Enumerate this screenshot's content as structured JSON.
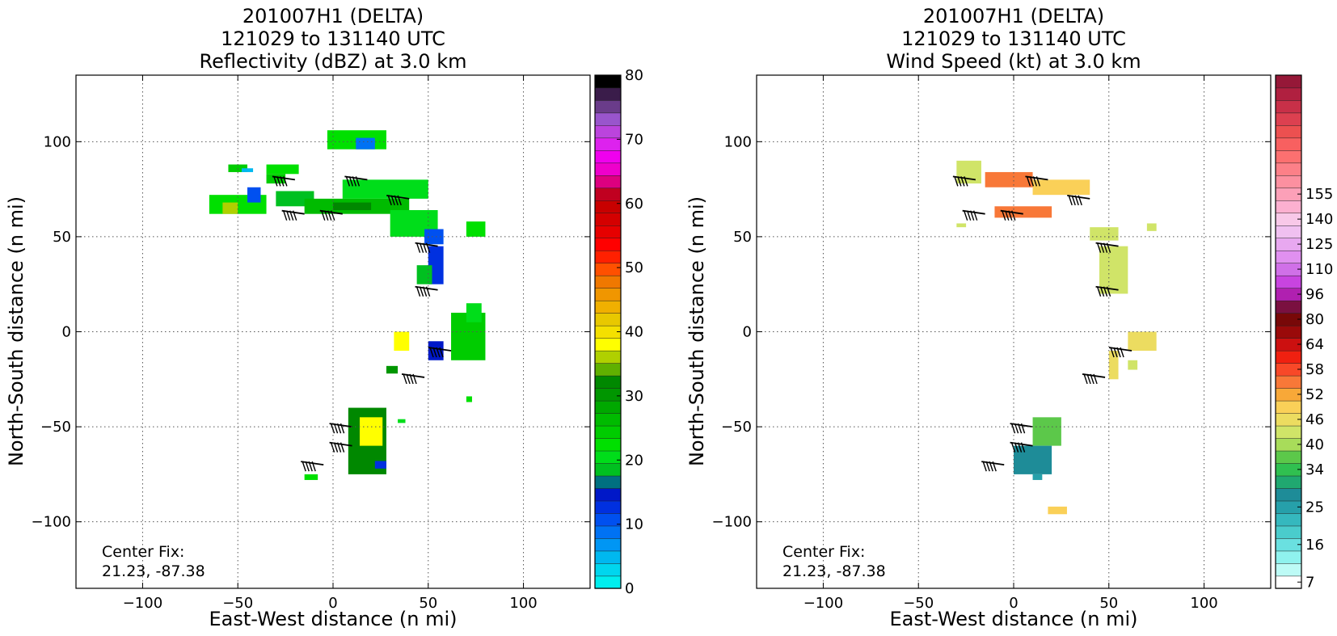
{
  "chart_data": [
    {
      "type": "heatmap",
      "title_lines": [
        "201007H1 (DELTA)",
        "121029 to 131140 UTC",
        "Reflectivity (dBZ) at 3.0 km"
      ],
      "xlabel": "East-West distance (n mi)",
      "ylabel": "North-South distance (n mi)",
      "xlim": [
        -135,
        135
      ],
      "ylim": [
        -135,
        135
      ],
      "xticks": [
        -100,
        -50,
        0,
        50,
        100
      ],
      "yticks": [
        -100,
        -50,
        0,
        50,
        100
      ],
      "x_tick_labels": [
        "−100",
        "−50",
        "0",
        "50",
        "100"
      ],
      "y_tick_labels": [
        "−100",
        "−50",
        "0",
        "50",
        "100"
      ],
      "grid": true,
      "annotation": [
        "Center Fix:",
        "21.23, -87.38"
      ],
      "colorbar": {
        "min": 0,
        "max": 80,
        "tick_values": [
          0,
          10,
          20,
          30,
          40,
          50,
          60,
          70,
          80
        ],
        "tick_labels": [
          "0",
          "10",
          "20",
          "30",
          "40",
          "50",
          "60",
          "70",
          "80"
        ],
        "colors": [
          "#00eeee",
          "#00d6ee",
          "#00b8f0",
          "#0096f4",
          "#0072f4",
          "#0050f0",
          "#0030e0",
          "#0018c8",
          "#007080",
          "#00c020",
          "#00dd1a",
          "#00e000",
          "#00cc00",
          "#00bb00",
          "#00a800",
          "#009600",
          "#008800",
          "#60b000",
          "#b0d000",
          "#ffff00",
          "#f4e000",
          "#e8c800",
          "#f0b000",
          "#f09600",
          "#f07800",
          "#ff5000",
          "#ff2000",
          "#ff0000",
          "#e60000",
          "#d40000",
          "#c80000",
          "#c00020",
          "#dd0080",
          "#ee00cc",
          "#f000ee",
          "#dd22ee",
          "#bb44dd",
          "#9955cc",
          "#6a3c8a",
          "#3a1c4a",
          "#000000"
        ]
      },
      "echo_regions": [
        {
          "x": [
            -3,
            28
          ],
          "y": [
            96,
            106
          ],
          "value": 22
        },
        {
          "x": [
            12,
            22
          ],
          "y": [
            96,
            102
          ],
          "value": 8
        },
        {
          "x": [
            -55,
            -45
          ],
          "y": [
            84,
            88
          ],
          "value": 25
        },
        {
          "x": [
            -48,
            -42
          ],
          "y": [
            84,
            86
          ],
          "value": 5
        },
        {
          "x": [
            -35,
            -18
          ],
          "y": [
            83,
            88
          ],
          "value": 22
        },
        {
          "x": [
            -35,
            -25
          ],
          "y": [
            78,
            83
          ],
          "value": 25
        },
        {
          "x": [
            -65,
            -35
          ],
          "y": [
            62,
            72
          ],
          "value": 22
        },
        {
          "x": [
            -58,
            -50
          ],
          "y": [
            62,
            68
          ],
          "value": 36
        },
        {
          "x": [
            -45,
            -38
          ],
          "y": [
            68,
            76
          ],
          "value": 10
        },
        {
          "x": [
            -30,
            -10
          ],
          "y": [
            66,
            74
          ],
          "value": 18
        },
        {
          "x": [
            -15,
            40
          ],
          "y": [
            62,
            70
          ],
          "value": 26
        },
        {
          "x": [
            0,
            20
          ],
          "y": [
            64,
            68
          ],
          "value": 32
        },
        {
          "x": [
            5,
            50
          ],
          "y": [
            70,
            80
          ],
          "value": 20
        },
        {
          "x": [
            30,
            55
          ],
          "y": [
            50,
            64
          ],
          "value": 20
        },
        {
          "x": [
            48,
            58
          ],
          "y": [
            46,
            54
          ],
          "value": 10
        },
        {
          "x": [
            50,
            58
          ],
          "y": [
            25,
            45
          ],
          "value": 12
        },
        {
          "x": [
            44,
            52
          ],
          "y": [
            25,
            35
          ],
          "value": 18
        },
        {
          "x": [
            70,
            80
          ],
          "y": [
            50,
            58
          ],
          "value": 22
        },
        {
          "x": [
            62,
            80
          ],
          "y": [
            -15,
            10
          ],
          "value": 24
        },
        {
          "x": [
            70,
            78
          ],
          "y": [
            5,
            15
          ],
          "value": 20
        },
        {
          "x": [
            50,
            58
          ],
          "y": [
            -15,
            -5
          ],
          "value": 15
        },
        {
          "x": [
            32,
            40
          ],
          "y": [
            -10,
            0
          ],
          "value": 38
        },
        {
          "x": [
            28,
            34
          ],
          "y": [
            -22,
            -18
          ],
          "value": 30
        },
        {
          "x": [
            8,
            28
          ],
          "y": [
            -75,
            -40
          ],
          "value": 32
        },
        {
          "x": [
            14,
            26
          ],
          "y": [
            -60,
            -45
          ],
          "value": 38
        },
        {
          "x": [
            -15,
            -8
          ],
          "y": [
            -78,
            -75
          ],
          "value": 22
        },
        {
          "x": [
            22,
            28
          ],
          "y": [
            -72,
            -68
          ],
          "value": 12
        },
        {
          "x": [
            34,
            38
          ],
          "y": [
            -48,
            -46
          ],
          "value": 20
        },
        {
          "x": [
            70,
            73
          ],
          "y": [
            -37,
            -34
          ],
          "value": 22
        }
      ]
    },
    {
      "type": "heatmap",
      "title_lines": [
        "201007H1 (DELTA)",
        "121029 to 131140 UTC",
        "Wind Speed (kt) at 3.0 km"
      ],
      "xlabel": "East-West distance (n mi)",
      "ylabel": "North-South distance (n mi)",
      "xlim": [
        -135,
        135
      ],
      "ylim": [
        -135,
        135
      ],
      "xticks": [
        -100,
        -50,
        0,
        50,
        100
      ],
      "yticks": [
        -100,
        -50,
        0,
        50,
        100
      ],
      "x_tick_labels": [
        "−100",
        "−50",
        "0",
        "50",
        "100"
      ],
      "y_tick_labels": [
        "−100",
        "−50",
        "0",
        "50",
        "100"
      ],
      "grid": true,
      "annotation": [
        "Center Fix:",
        "21.23, -87.38"
      ],
      "colorbar": {
        "tick_labels": [
          "7",
          "16",
          "25",
          "34",
          "40",
          "46",
          "52",
          "58",
          "64",
          "80",
          "96",
          "110",
          "125",
          "140",
          "155"
        ],
        "tick_bins": [
          0,
          3,
          6,
          9,
          11,
          13,
          15,
          17,
          19,
          21,
          23,
          25,
          27,
          29,
          31
        ],
        "colors": [
          "#ffffff",
          "#bdfbf6",
          "#8ff2ee",
          "#6ae0e0",
          "#4acccc",
          "#35b8be",
          "#26a0aa",
          "#1e8c98",
          "#20a870",
          "#30c050",
          "#5cc84a",
          "#a8dc5a",
          "#d0e468",
          "#ecdc60",
          "#fad058",
          "#f8a838",
          "#f87838",
          "#f84828",
          "#f02010",
          "#cc1010",
          "#9a0a0a",
          "#780808",
          "#7a1040",
          "#b020b0",
          "#c844e0",
          "#d070e8",
          "#e090f0",
          "#e8a8f0",
          "#f0c0f0",
          "#f8c8e8",
          "#fcb0d0",
          "#fca0b8",
          "#fc90a0",
          "#fc8088",
          "#fc7070",
          "#f86060",
          "#ec5050",
          "#dc4050",
          "#c83048",
          "#b02040",
          "#961838"
        ]
      },
      "echo_regions": [
        {
          "x": [
            -30,
            -17
          ],
          "y": [
            78,
            90
          ],
          "value": 44
        },
        {
          "x": [
            -15,
            10
          ],
          "y": [
            76,
            84
          ],
          "value": 54
        },
        {
          "x": [
            10,
            40
          ],
          "y": [
            72,
            80
          ],
          "value": 50
        },
        {
          "x": [
            -10,
            20
          ],
          "y": [
            60,
            66
          ],
          "value": 56
        },
        {
          "x": [
            -30,
            -25
          ],
          "y": [
            55,
            57
          ],
          "value": 44
        },
        {
          "x": [
            40,
            55
          ],
          "y": [
            48,
            55
          ],
          "value": 44
        },
        {
          "x": [
            45,
            60
          ],
          "y": [
            20,
            45
          ],
          "value": 42
        },
        {
          "x": [
            70,
            75
          ],
          "y": [
            53,
            57
          ],
          "value": 42
        },
        {
          "x": [
            60,
            75
          ],
          "y": [
            -10,
            0
          ],
          "value": 46
        },
        {
          "x": [
            50,
            55
          ],
          "y": [
            -25,
            -10
          ],
          "value": 46
        },
        {
          "x": [
            60,
            65
          ],
          "y": [
            -20,
            -15
          ],
          "value": 42
        },
        {
          "x": [
            10,
            25
          ],
          "y": [
            -60,
            -45
          ],
          "value": 38
        },
        {
          "x": [
            0,
            20
          ],
          "y": [
            -75,
            -60
          ],
          "value": 28
        },
        {
          "x": [
            10,
            15
          ],
          "y": [
            -78,
            -75
          ],
          "value": 26
        },
        {
          "x": [
            18,
            28
          ],
          "y": [
            -96,
            -92
          ],
          "value": 50
        }
      ]
    }
  ]
}
